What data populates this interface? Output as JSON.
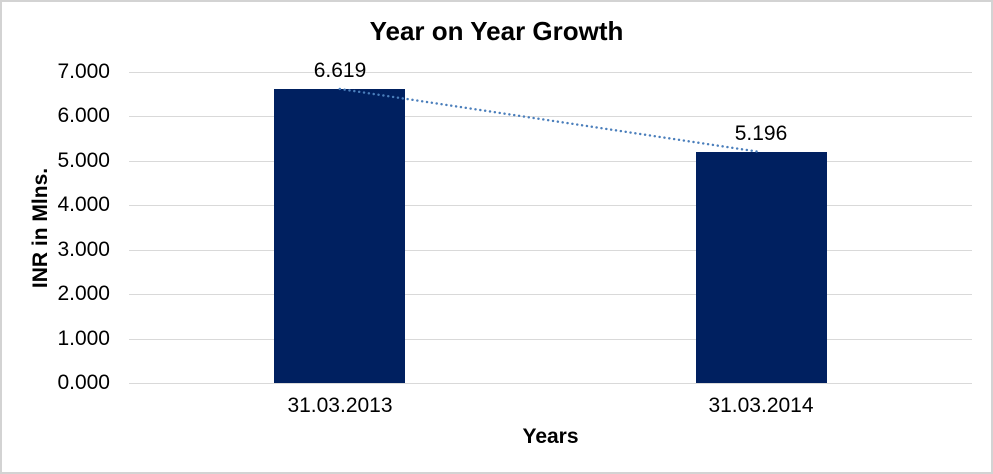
{
  "chart_data": {
    "type": "bar",
    "title": "Year on Year Growth",
    "xlabel": "Years",
    "ylabel": "INR in Mlns.",
    "categories": [
      "31.03.2013",
      "31.03.2014"
    ],
    "series": [
      {
        "name": "INR in Mlns.",
        "values": [
          6.619,
          5.196
        ],
        "data_labels": [
          "6.619",
          "5.196"
        ]
      }
    ],
    "trendline": {
      "type": "linear",
      "style": "dotted",
      "from_category": "31.03.2013",
      "to_category": "31.03.2014"
    },
    "ylim": [
      0,
      7
    ],
    "ytick_labels": [
      "0.000",
      "1.000",
      "2.000",
      "3.000",
      "4.000",
      "5.000",
      "6.000",
      "7.000"
    ],
    "grid": true,
    "legend": "none",
    "colors": {
      "bar": "#002060",
      "trendline": "#4a7ebb",
      "gridline": "#d9d9d9",
      "axis_line": "#d9d9d9",
      "text": "#000000",
      "background": "#ffffff",
      "border": "#d3d3d3"
    }
  }
}
